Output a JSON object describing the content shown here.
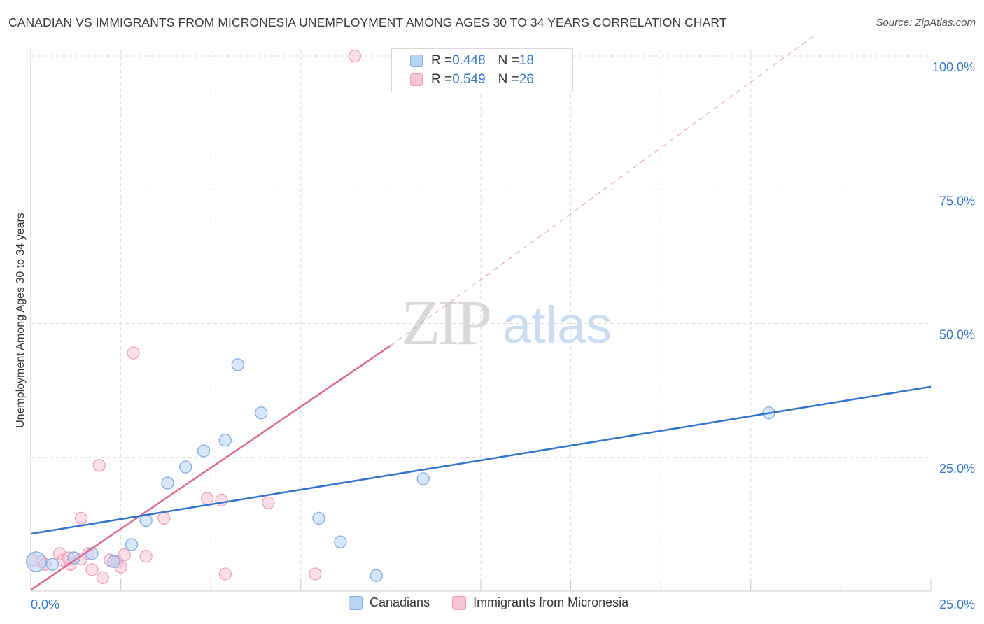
{
  "title": "CANADIAN VS IMMIGRANTS FROM MICRONESIA UNEMPLOYMENT AMONG AGES 30 TO 34 YEARS CORRELATION CHART",
  "source": "Source: ZipAtlas.com",
  "watermark": {
    "zip": "ZIP",
    "atlas": "atlas"
  },
  "legend": {
    "rows": [
      {
        "r_label": "R = ",
        "r_value": "0.448",
        "n_label": "N = ",
        "n_value": "18"
      },
      {
        "r_label": "R = ",
        "r_value": "0.549",
        "n_label": "N = ",
        "n_value": "26"
      }
    ]
  },
  "colors": {
    "canadians_fill": "#b8d4f5",
    "canadians_stroke": "#7eaee3",
    "canadians_line": "#2f74d0",
    "micronesia_fill": "#f8c5d5",
    "micronesia_stroke": "#eda0b8",
    "micronesia_line": "#e06a94",
    "tick_label": "#3a78d0",
    "grid": "#dddddd"
  },
  "chart_data": {
    "type": "scatter",
    "title": "CANADIAN VS IMMIGRANTS FROM MICRONESIA UNEMPLOYMENT AMONG AGES 30 TO 34 YEARS CORRELATION CHART",
    "xlabel": "",
    "ylabel": "Unemployment Among Ages 30 to 34 years",
    "xlim": [
      0,
      25
    ],
    "ylim": [
      0,
      100
    ],
    "x_tick_labels": [
      "0.0%",
      "25.0%"
    ],
    "y_ticks": [
      25,
      50,
      75,
      100
    ],
    "y_tick_labels": [
      "25.0%",
      "50.0%",
      "75.0%",
      "100.0%"
    ],
    "grid": true,
    "legend_position": "bottom-center",
    "series": [
      {
        "name": "Canadians",
        "r": 0.448,
        "n": 18,
        "points": [
          {
            "x": 0.15,
            "y": 5.5,
            "big": true
          },
          {
            "x": 0.6,
            "y": 5.0
          },
          {
            "x": 1.2,
            "y": 6.2
          },
          {
            "x": 1.7,
            "y": 7.0
          },
          {
            "x": 2.3,
            "y": 5.5
          },
          {
            "x": 2.8,
            "y": 8.7
          },
          {
            "x": 3.2,
            "y": 13.2
          },
          {
            "x": 3.8,
            "y": 20.2
          },
          {
            "x": 4.3,
            "y": 23.2
          },
          {
            "x": 4.8,
            "y": 26.2
          },
          {
            "x": 5.4,
            "y": 28.2
          },
          {
            "x": 5.75,
            "y": 42.3
          },
          {
            "x": 6.4,
            "y": 33.3
          },
          {
            "x": 8.0,
            "y": 13.6
          },
          {
            "x": 8.6,
            "y": 9.2
          },
          {
            "x": 9.6,
            "y": 2.9
          },
          {
            "x": 10.9,
            "y": 21.0
          },
          {
            "x": 20.5,
            "y": 33.3
          }
        ],
        "trend": {
          "x0": 0,
          "y0": 10.7,
          "x1": 25,
          "y1": 38.2
        }
      },
      {
        "name": "Immigrants from Micronesia",
        "r": 0.549,
        "n": 26,
        "points": [
          {
            "x": 0.05,
            "y": 5.8
          },
          {
            "x": 0.3,
            "y": 5.5
          },
          {
            "x": 0.4,
            "y": 5.0
          },
          {
            "x": 0.8,
            "y": 7.0
          },
          {
            "x": 0.9,
            "y": 5.8
          },
          {
            "x": 1.1,
            "y": 5.0
          },
          {
            "x": 1.4,
            "y": 6.0
          },
          {
            "x": 1.6,
            "y": 7.0
          },
          {
            "x": 1.4,
            "y": 13.6
          },
          {
            "x": 1.7,
            "y": 4.0
          },
          {
            "x": 1.9,
            "y": 23.5
          },
          {
            "x": 2.0,
            "y": 2.5
          },
          {
            "x": 2.2,
            "y": 5.8
          },
          {
            "x": 2.4,
            "y": 5.5
          },
          {
            "x": 2.5,
            "y": 4.5
          },
          {
            "x": 2.6,
            "y": 6.8
          },
          {
            "x": 2.85,
            "y": 44.5
          },
          {
            "x": 3.2,
            "y": 6.5
          },
          {
            "x": 3.7,
            "y": 13.6
          },
          {
            "x": 4.9,
            "y": 17.3
          },
          {
            "x": 5.3,
            "y": 17.0
          },
          {
            "x": 5.4,
            "y": 3.2
          },
          {
            "x": 6.6,
            "y": 16.5
          },
          {
            "x": 7.9,
            "y": 3.2
          },
          {
            "x": 9.0,
            "y": 100.0
          },
          {
            "x": 1.05,
            "y": 6.2
          }
        ],
        "trend": {
          "x0": 0,
          "y0": 0.2,
          "x1": 10.0,
          "y1": 45.9
        },
        "trend_extension": {
          "x0": 10.0,
          "y0": 45.9,
          "x1": 21.8,
          "y1": 104.0
        }
      }
    ]
  },
  "bottom_legend": [
    "Canadians",
    "Immigrants from Micronesia"
  ]
}
